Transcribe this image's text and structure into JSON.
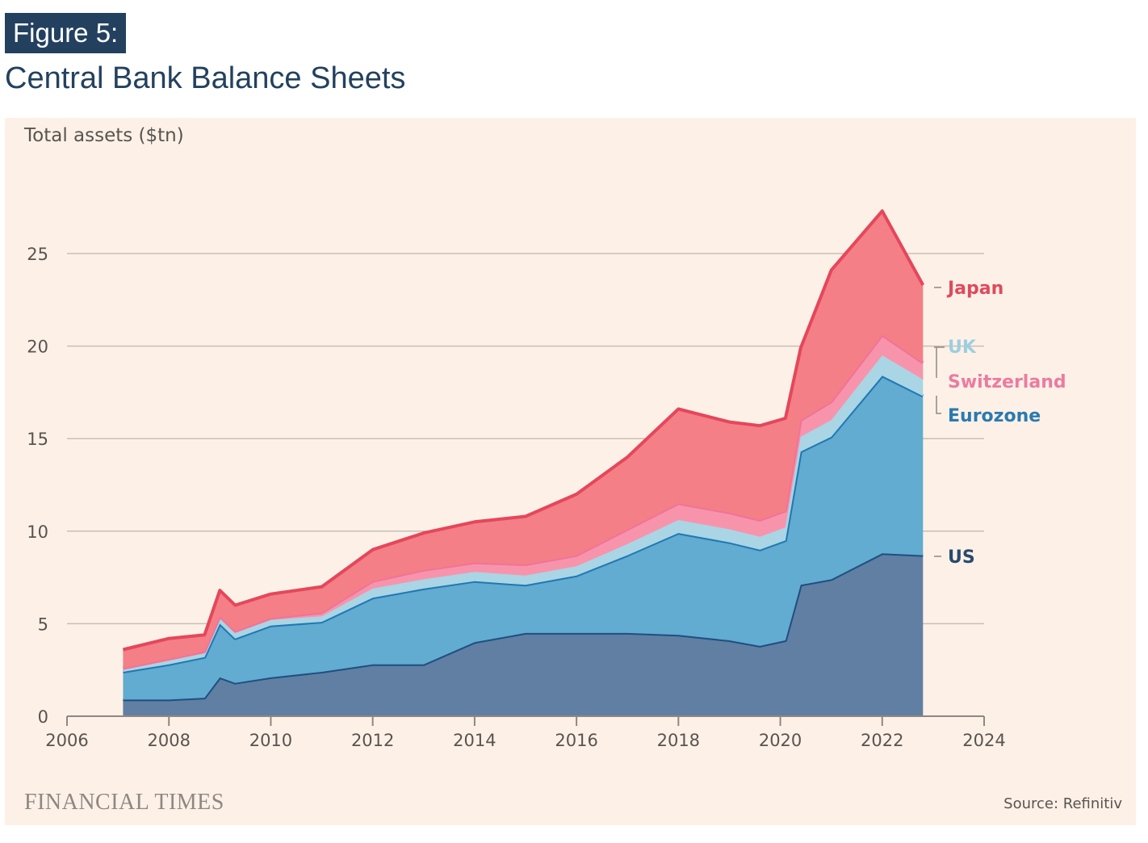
{
  "header": {
    "figure_label": "Figure 5:",
    "title": "Central Bank Balance Sheets"
  },
  "footer": {
    "brand": "FINANCIAL TIMES",
    "source": "Source: Refinitiv"
  },
  "chart_data": {
    "type": "area",
    "stacked": true,
    "title": "Central Bank Balance Sheets",
    "ylabel": "Total assets ($tn)",
    "xlabel": "",
    "xlim": [
      2006,
      2024
    ],
    "ylim": [
      0,
      27.5
    ],
    "x_ticks": [
      "2006",
      "2008",
      "2010",
      "2012",
      "2014",
      "2016",
      "2018",
      "2020",
      "2022",
      "2024"
    ],
    "y_ticks": [
      "0",
      "5",
      "10",
      "15",
      "20",
      "25"
    ],
    "grid": true,
    "legend": "right (direct labels)",
    "x": [
      2007.1,
      2008.0,
      2008.7,
      2009.0,
      2009.3,
      2010.0,
      2011.0,
      2012.0,
      2013.0,
      2014.0,
      2015.0,
      2016.0,
      2017.0,
      2018.0,
      2019.0,
      2019.6,
      2020.1,
      2020.4,
      2021.0,
      2022.0,
      2022.8
    ],
    "series": [
      {
        "name": "US",
        "color": "#607fa3",
        "line": "#1f4f80",
        "label_color": "#2a4a6e",
        "values": [
          0.9,
          0.9,
          1.0,
          2.1,
          1.8,
          2.1,
          2.4,
          2.8,
          2.8,
          4.0,
          4.5,
          4.5,
          4.5,
          4.4,
          4.1,
          3.8,
          4.1,
          7.1,
          7.4,
          8.8,
          8.7
        ]
      },
      {
        "name": "Eurozone",
        "color": "#62abd1",
        "line": "#1f78b4",
        "label_color": "#2a7ab0",
        "values": [
          1.5,
          1.9,
          2.2,
          2.9,
          2.4,
          2.8,
          2.7,
          3.6,
          4.1,
          3.3,
          2.6,
          3.1,
          4.2,
          5.5,
          5.3,
          5.2,
          5.4,
          7.2,
          7.7,
          9.6,
          8.6
        ]
      },
      {
        "name": "UK",
        "color": "#a9d5e4",
        "line": "#a9d5e4",
        "label_color": "#9ccfe0",
        "values": [
          0.1,
          0.2,
          0.2,
          0.3,
          0.3,
          0.3,
          0.3,
          0.5,
          0.5,
          0.5,
          0.5,
          0.5,
          0.6,
          0.7,
          0.7,
          0.7,
          0.7,
          0.8,
          0.9,
          1.1,
          0.9
        ]
      },
      {
        "name": "Switzerland",
        "color": "#f794ac",
        "line": "#f07399",
        "label_color": "#ec7ba0",
        "values": [
          0.1,
          0.1,
          0.1,
          0.1,
          0.1,
          0.1,
          0.2,
          0.4,
          0.5,
          0.5,
          0.6,
          0.6,
          0.8,
          0.9,
          0.9,
          0.9,
          0.9,
          0.9,
          1.0,
          1.1,
          0.9
        ]
      },
      {
        "name": "Japan",
        "color": "#f47f86",
        "line": "#e5475b",
        "label_color": "#de4b5c",
        "values": [
          1.0,
          1.1,
          0.9,
          1.4,
          1.4,
          1.3,
          1.4,
          1.7,
          2.0,
          2.2,
          2.6,
          3.3,
          3.9,
          5.1,
          4.9,
          5.1,
          5.0,
          3.9,
          7.1,
          6.7,
          4.2
        ]
      }
    ]
  }
}
